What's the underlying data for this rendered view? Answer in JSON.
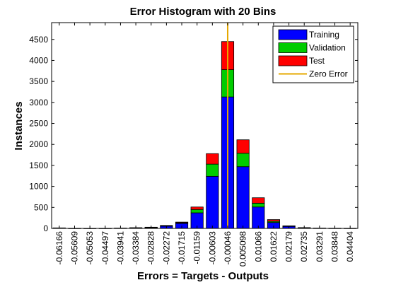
{
  "chart_data": {
    "type": "bar",
    "stacked": true,
    "title": "Error Histogram with 20 Bins",
    "xlabel": "Errors = Targets - Outputs",
    "ylabel": "Instances",
    "ylim": [
      0,
      4900
    ],
    "yticks": [
      0,
      500,
      1000,
      1500,
      2000,
      2500,
      3000,
      3500,
      4000,
      4500
    ],
    "categories": [
      "-0.06166",
      "-0.05609",
      "-0.05053",
      "-0.04497",
      "-0.03941",
      "-0.03384",
      "-0.02828",
      "-0.02272",
      "-0.01715",
      "-0.01159",
      "-0.00603",
      "-0.00046",
      "0.005098",
      "0.01066",
      "0.01622",
      "0.02179",
      "0.02735",
      "0.03291",
      "0.03848",
      "0.04404"
    ],
    "series": [
      {
        "name": "Training",
        "color": "#0000ff",
        "values": [
          10,
          3,
          2,
          3,
          8,
          12,
          20,
          55,
          120,
          370,
          1240,
          3130,
          1470,
          510,
          140,
          50,
          15,
          8,
          5,
          4
        ]
      },
      {
        "name": "Validation",
        "color": "#00cc00",
        "values": [
          1,
          0,
          0,
          0,
          1,
          2,
          4,
          8,
          15,
          80,
          290,
          650,
          320,
          90,
          30,
          6,
          2,
          1,
          0,
          0
        ]
      },
      {
        "name": "Test",
        "color": "#ff0000",
        "values": [
          1,
          0,
          0,
          0,
          1,
          2,
          4,
          7,
          15,
          60,
          250,
          670,
          320,
          130,
          40,
          6,
          2,
          1,
          0,
          0
        ]
      }
    ],
    "zero_error": {
      "name": "Zero Error",
      "x_category_index": 11,
      "color": "#e6a800"
    },
    "legend_position": "top-right",
    "grid": false
  }
}
